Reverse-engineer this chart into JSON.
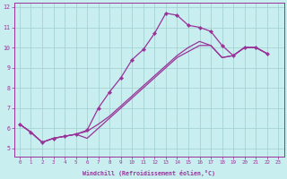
{
  "background_color": "#c8eef0",
  "line_color": "#993399",
  "xlim": [
    -0.5,
    23.5
  ],
  "ylim": [
    4.6,
    12.2
  ],
  "xticks": [
    0,
    1,
    2,
    3,
    4,
    5,
    6,
    7,
    8,
    9,
    10,
    11,
    12,
    13,
    14,
    15,
    16,
    17,
    18,
    19,
    20,
    21,
    22,
    23
  ],
  "yticks": [
    5,
    6,
    7,
    8,
    9,
    10,
    11,
    12
  ],
  "xlabel": "Windchill (Refroidissement éolien,°C)",
  "series1_x": [
    0,
    1,
    2,
    3,
    4,
    5,
    6,
    7,
    8,
    9,
    10,
    11,
    12,
    13,
    14,
    15,
    16,
    17,
    18,
    19,
    20,
    21,
    22
  ],
  "series1_y": [
    6.2,
    5.8,
    5.3,
    5.5,
    5.6,
    5.7,
    5.9,
    7.0,
    7.8,
    8.5,
    9.4,
    9.9,
    10.7,
    11.7,
    11.6,
    11.1,
    11.0,
    10.8,
    10.1,
    9.6,
    10.0,
    10.0,
    9.7
  ],
  "series2_x": [
    0,
    1,
    2,
    3,
    4,
    5,
    6,
    7,
    8,
    9,
    10,
    11,
    12,
    13,
    14,
    15,
    16,
    17,
    18,
    19,
    20,
    21,
    22
  ],
  "series2_y": [
    6.2,
    5.8,
    5.3,
    5.5,
    5.6,
    5.7,
    5.85,
    6.2,
    6.6,
    7.1,
    7.6,
    8.1,
    8.6,
    9.1,
    9.6,
    10.0,
    10.3,
    10.1,
    9.5,
    9.6,
    10.0,
    10.0,
    9.7
  ],
  "series3_x": [
    0,
    1,
    2,
    3,
    4,
    5,
    6,
    7,
    8,
    9,
    10,
    11,
    12,
    13,
    14,
    15,
    16,
    17,
    18,
    19,
    20,
    21,
    22
  ],
  "series3_y": [
    6.2,
    5.8,
    5.3,
    5.5,
    5.6,
    5.7,
    5.5,
    6.0,
    6.5,
    7.0,
    7.5,
    8.0,
    8.5,
    9.0,
    9.5,
    9.8,
    10.1,
    10.1,
    9.5,
    9.6,
    10.0,
    10.0,
    9.7
  ]
}
